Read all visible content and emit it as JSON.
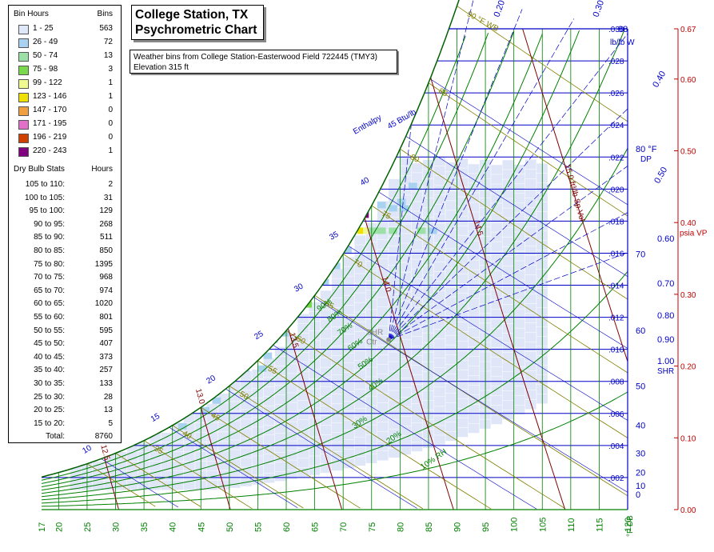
{
  "title": {
    "line1": "College Station, TX",
    "line2": "Psychrometric Chart"
  },
  "info": {
    "line1": "Weather bins from College Station-Easterwood Field 722445 (TMY3)",
    "line2": "Elevation 315 ft"
  },
  "legend": {
    "bin_header": "Bin Hours",
    "bins_header": "Bins",
    "bins": [
      {
        "range": "1 - 25",
        "count": "563",
        "color": "#dfe8f8"
      },
      {
        "range": "26 - 49",
        "count": "72",
        "color": "#a8d2f0"
      },
      {
        "range": "50 - 74",
        "count": "13",
        "color": "#9ce0a8"
      },
      {
        "range": "75 - 98",
        "count": "3",
        "color": "#7ad84c"
      },
      {
        "range": "99 - 122",
        "count": "1",
        "color": "#f0f890"
      },
      {
        "range": "123 - 146",
        "count": "1",
        "color": "#f0e000"
      },
      {
        "range": "147 - 170",
        "count": "0",
        "color": "#f0a040"
      },
      {
        "range": "171 - 195",
        "count": "0",
        "color": "#e070c8"
      },
      {
        "range": "196 - 219",
        "count": "0",
        "color": "#d04000"
      },
      {
        "range": "220 - 243",
        "count": "1",
        "color": "#800080"
      }
    ],
    "stats_header": "Dry Bulb Stats",
    "hours_header": "Hours",
    "stats": [
      {
        "range": "105 to 110:",
        "hours": "2"
      },
      {
        "range": "100 to 105:",
        "hours": "31"
      },
      {
        "range": "95 to 100:",
        "hours": "129"
      },
      {
        "range": "90 to 95:",
        "hours": "268"
      },
      {
        "range": "85 to 90:",
        "hours": "511"
      },
      {
        "range": "80 to 85:",
        "hours": "850"
      },
      {
        "range": "75 to 80:",
        "hours": "1395"
      },
      {
        "range": "70 to 75:",
        "hours": "968"
      },
      {
        "range": "65 to 70:",
        "hours": "974"
      },
      {
        "range": "60 to 65:",
        "hours": "1020"
      },
      {
        "range": "55 to 60:",
        "hours": "801"
      },
      {
        "range": "50 to 55:",
        "hours": "595"
      },
      {
        "range": "45 to 50:",
        "hours": "407"
      },
      {
        "range": "40 to 45:",
        "hours": "373"
      },
      {
        "range": "35 to 40:",
        "hours": "257"
      },
      {
        "range": "30 to 35:",
        "hours": "133"
      },
      {
        "range": "25 to 30:",
        "hours": "28"
      },
      {
        "range": "20 to 25:",
        "hours": "13"
      },
      {
        "range": "15 to 20:",
        "hours": "5"
      }
    ],
    "total_label": "Total:",
    "total_hours": "8760"
  },
  "chart_data": {
    "type": "heatmap",
    "title": "College Station, TX Psychrometric Chart",
    "x_axis": {
      "label": "°F DB",
      "ticks": [
        17,
        20,
        25,
        30,
        35,
        40,
        45,
        50,
        55,
        60,
        65,
        70,
        75,
        80,
        85,
        90,
        95,
        100,
        105,
        110,
        115,
        120
      ],
      "range": [
        17,
        120
      ]
    },
    "y_axis_humidity": {
      "label": "lb/lb W",
      "ticks": [
        ".002",
        ".004",
        ".006",
        ".008",
        ".010",
        ".012",
        ".014",
        ".016",
        ".018",
        ".020",
        ".022",
        ".024",
        ".026",
        ".028",
        ".030"
      ],
      "range": [
        0,
        0.03
      ]
    },
    "y_axis_vapor_pressure": {
      "label": "psia VP",
      "ticks": [
        "0.00",
        "0.10",
        "0.20",
        "0.30",
        "0.40",
        "0.50",
        "0.60",
        "0.67"
      ]
    },
    "dew_point_labels": [
      "0",
      "10",
      "20",
      "30",
      "40",
      "50",
      "60",
      "70",
      "80 °F",
      "88"
    ],
    "dew_point_unit": "DP",
    "enthalpy_labels": [
      "10",
      "15",
      "20",
      "25",
      "30",
      "35",
      "40",
      "45 Btu/lb"
    ],
    "enthalpy_unit": "Enthalpy",
    "wet_bulb_labels": [
      "35",
      "40",
      "45",
      "50",
      "55",
      "60",
      "65",
      "70",
      "75",
      "80",
      "85",
      "90 °F WB"
    ],
    "relative_humidity_labels": [
      "10% RH",
      "20%",
      "30%",
      "40%",
      "50%",
      "60%",
      "70%",
      "80%",
      "90%"
    ],
    "specific_volume_labels": [
      "12.5",
      "13.0",
      "13.5",
      "14.0",
      "14.5",
      "15.0 ft³/lb Sp.Vol"
    ],
    "shr_labels": [
      "0.20",
      "0.30",
      "0.40",
      "0.50",
      "0.60",
      "0.70",
      "0.80",
      "0.90",
      "1.00"
    ],
    "shr_unit": "SHR",
    "shr_center_label": "SHR Ctr",
    "bins": [
      {
        "db": 73.0,
        "w": 0.0182,
        "hours": 233
      },
      {
        "db": 72.5,
        "w": 0.0172,
        "hours": 130
      },
      {
        "db": 73.5,
        "w": 0.0172,
        "hours": 110
      },
      {
        "db": 72.5,
        "w": 0.02,
        "hours": 85
      },
      {
        "db": 61.0,
        "w": 0.0122,
        "hours": 80
      },
      {
        "db": 63.0,
        "w": 0.0126,
        "hours": 80
      },
      {
        "db": 74.5,
        "w": 0.0172,
        "hours": 65
      },
      {
        "db": 72.5,
        "w": 0.0192,
        "hours": 60
      },
      {
        "db": 76.0,
        "w": 0.0172,
        "hours": 60
      },
      {
        "db": 83.0,
        "w": 0.0172,
        "hours": 55
      },
      {
        "db": 78.0,
        "w": 0.0172,
        "hours": 50
      },
      {
        "db": 76.0,
        "w": 0.0188,
        "hours": 45
      },
      {
        "db": 78.0,
        "w": 0.0186,
        "hours": 45
      },
      {
        "db": 80.0,
        "w": 0.0186,
        "hours": 40
      },
      {
        "db": 85.0,
        "w": 0.0172,
        "hours": 40
      },
      {
        "db": 81.5,
        "w": 0.02,
        "hours": 35
      },
      {
        "db": 79.5,
        "w": 0.019,
        "hours": 35
      },
      {
        "db": 70.0,
        "w": 0.016,
        "hours": 35
      },
      {
        "db": 68.0,
        "w": 0.015,
        "hours": 30
      },
      {
        "db": 66.0,
        "w": 0.014,
        "hours": 30
      },
      {
        "db": 63.0,
        "w": 0.0134,
        "hours": 30
      },
      {
        "db": 61.0,
        "w": 0.0128,
        "hours": 30
      },
      {
        "db": 56.0,
        "w": 0.0094,
        "hours": 35
      },
      {
        "db": 55.0,
        "w": 0.0086,
        "hours": 30
      },
      {
        "db": 52.0,
        "w": 0.0086,
        "hours": 28
      },
      {
        "db": 47.0,
        "w": 0.0066,
        "hours": 28
      },
      {
        "db": 45.0,
        "w": 0.006,
        "hours": 28
      },
      {
        "db": 41.0,
        "w": 0.005,
        "hours": 27
      },
      {
        "db": 57.0,
        "w": 0.0104,
        "hours": 30
      },
      {
        "db": 59.0,
        "w": 0.0108,
        "hours": 26
      }
    ]
  }
}
